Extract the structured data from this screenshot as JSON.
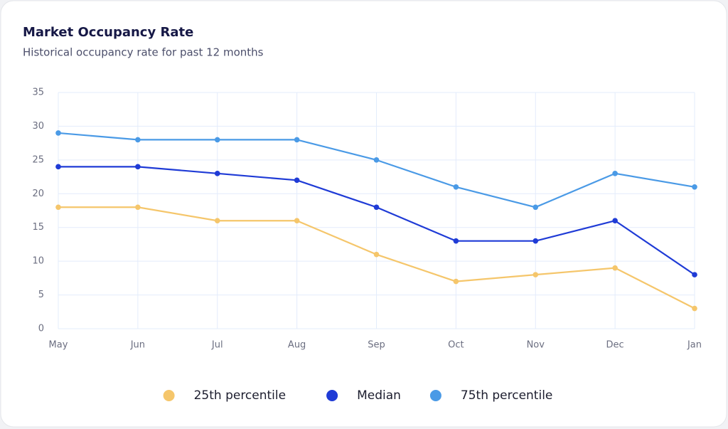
{
  "chart_data": {
    "type": "line",
    "title": "Market Occupancy Rate",
    "subtitle": "Historical occupancy rate for past 12 months",
    "categories": [
      "May",
      "Jun",
      "Jul",
      "Aug",
      "Sep",
      "Oct",
      "Nov",
      "Dec",
      "Jan"
    ],
    "series": [
      {
        "name": "25th percentile",
        "color": "#f5c66b",
        "values": [
          18,
          18,
          16,
          16,
          11,
          7,
          8,
          9,
          3
        ]
      },
      {
        "name": "Median",
        "color": "#1f3bd6",
        "values": [
          24,
          24,
          23,
          22,
          18,
          13,
          13,
          16,
          8
        ]
      },
      {
        "name": "75th percentile",
        "color": "#4a9ae6",
        "values": [
          29,
          28,
          28,
          28,
          25,
          21,
          18,
          23,
          21
        ]
      }
    ],
    "ylim": [
      0,
      35
    ],
    "yticks": [
      0,
      5,
      10,
      15,
      20,
      25,
      30,
      35
    ],
    "grid": true,
    "legend": "bottom"
  }
}
